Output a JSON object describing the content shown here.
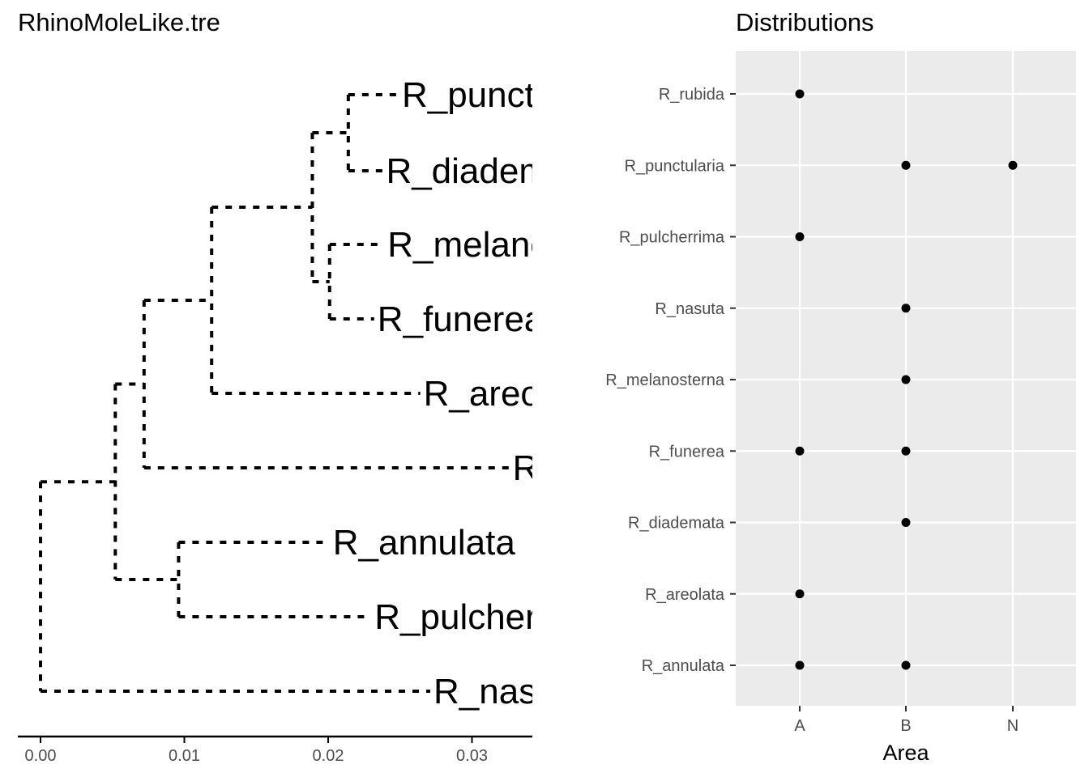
{
  "chart_data": [
    {
      "type": "tree",
      "title": "RhinoMoleLike.tre",
      "x_ticks": [
        "0.00",
        "0.01",
        "0.02",
        "0.03"
      ],
      "x_tick_values": [
        0.0,
        0.01,
        0.02,
        0.03
      ],
      "tips": [
        {
          "label": "R_punctularia",
          "x": 0.0249
        },
        {
          "label": "R_diademata",
          "x": 0.0238
        },
        {
          "label": "R_melanosterna",
          "x": 0.0239
        },
        {
          "label": "R_funerea",
          "x": 0.0232
        },
        {
          "label": "R_areolata",
          "x": 0.0264
        },
        {
          "label": "R_rubida",
          "x": 0.0326
        },
        {
          "label": "R_annulata",
          "x": 0.0201
        },
        {
          "label": "R_pulcherrima",
          "x": 0.023
        },
        {
          "label": "R_nasuta",
          "x": 0.0271
        }
      ],
      "nodes": [
        {
          "id": "n_pd",
          "x": 0.0214
        },
        {
          "id": "n_mf",
          "x": 0.0201
        },
        {
          "id": "n_pdmf",
          "x": 0.0189
        },
        {
          "id": "n_pdmfa",
          "x": 0.0119
        },
        {
          "id": "n_pdmfar",
          "x": 0.0072
        },
        {
          "id": "n_ap",
          "x": 0.0096
        },
        {
          "id": "n_in",
          "x": 0.0052
        },
        {
          "id": "n_root",
          "x": 0.0
        }
      ]
    },
    {
      "type": "scatter",
      "title": "Distributions",
      "xlabel": "Area",
      "ylabel": "",
      "x_categories": [
        "A",
        "B",
        "N"
      ],
      "y_categories": [
        "R_rubida",
        "R_punctularia",
        "R_pulcherrima",
        "R_nasuta",
        "R_melanosterna",
        "R_funerea",
        "R_diademata",
        "R_areolata",
        "R_annulata"
      ],
      "points": [
        {
          "species": "R_rubida",
          "area": "A"
        },
        {
          "species": "R_punctularia",
          "area": "B"
        },
        {
          "species": "R_punctularia",
          "area": "N"
        },
        {
          "species": "R_pulcherrima",
          "area": "A"
        },
        {
          "species": "R_nasuta",
          "area": "B"
        },
        {
          "species": "R_melanosterna",
          "area": "B"
        },
        {
          "species": "R_funerea",
          "area": "A"
        },
        {
          "species": "R_funerea",
          "area": "B"
        },
        {
          "species": "R_diademata",
          "area": "B"
        },
        {
          "species": "R_areolata",
          "area": "A"
        },
        {
          "species": "R_annulata",
          "area": "A"
        },
        {
          "species": "R_annulata",
          "area": "B"
        }
      ],
      "panel_color": "#ebebeb",
      "grid_color": "#ffffff"
    }
  ]
}
